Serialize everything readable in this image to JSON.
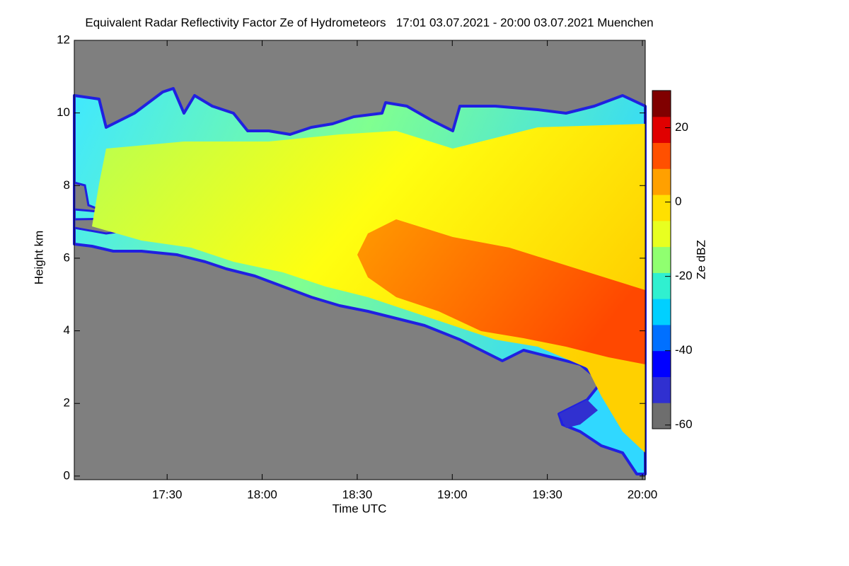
{
  "chart_data": {
    "type": "heatmap",
    "title": "Equivalent Radar Reflectivity Factor Ze of Hydrometeors   17:01 03.07.2021 - 20:00 03.07.2021 Muenchen",
    "xlabel": "Time UTC",
    "ylabel": "Height km",
    "xlim": [
      1020.7,
      1200.9
    ],
    "xticks": [
      {
        "value": 1050,
        "label": "17:30"
      },
      {
        "value": 1080,
        "label": "18:00"
      },
      {
        "value": 1110,
        "label": "18:30"
      },
      {
        "value": 1140,
        "label": "19:00"
      },
      {
        "value": 1170,
        "label": "19:30"
      },
      {
        "value": 1200,
        "label": "20:00"
      }
    ],
    "ylim": [
      -0.1,
      12
    ],
    "yticks": [
      0,
      2,
      4,
      6,
      8,
      10,
      12
    ],
    "background": "#7f7f7f",
    "colorbar": {
      "label": "Ze dBZ",
      "zlim": [
        -61,
        30
      ],
      "ticks": [
        -60,
        -40,
        -20,
        0,
        20
      ],
      "colors": [
        "#6e6e6e",
        "#3030d0",
        "#0000ff",
        "#0070ff",
        "#00d0ff",
        "#30f0d0",
        "#90ff70",
        "#e8ff20",
        "#ffe000",
        "#ffa000",
        "#ff5000",
        "#e00000",
        "#800000"
      ]
    }
  }
}
